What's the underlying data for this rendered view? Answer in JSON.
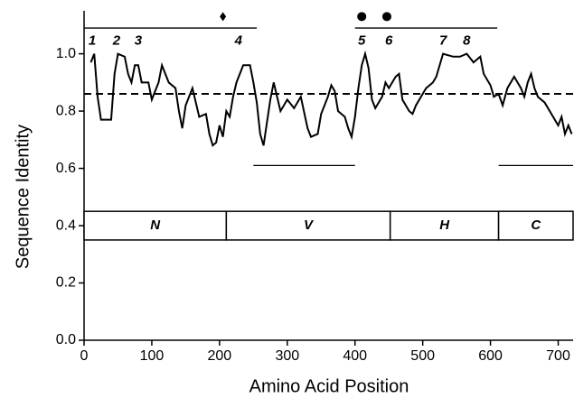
{
  "chart_data": {
    "type": "line",
    "x_label": "Amino Acid Position",
    "y_label": "Sequence Identity",
    "xlim": [
      0,
      722
    ],
    "ylim": [
      0,
      1.15
    ],
    "xticks": [
      0,
      100,
      200,
      300,
      400,
      500,
      600,
      700
    ],
    "yticks": [
      {
        "value": 0,
        "label": "0.0"
      },
      {
        "value": 0.2,
        "label": "0.2"
      },
      {
        "value": 0.4,
        "label": "0.4"
      },
      {
        "value": 0.6,
        "label": "0.6"
      },
      {
        "value": 0.8,
        "label": "0.8"
      },
      {
        "value": 1.0,
        "label": "1.0"
      }
    ],
    "color": "#000000",
    "x": [
      10,
      15,
      20,
      25,
      40,
      45,
      50,
      60,
      65,
      70,
      75,
      80,
      85,
      95,
      100,
      110,
      115,
      120,
      125,
      135,
      140,
      145,
      150,
      160,
      165,
      170,
      180,
      185,
      190,
      195,
      200,
      205,
      210,
      215,
      220,
      225,
      235,
      245,
      250,
      255,
      260,
      265,
      270,
      275,
      280,
      290,
      300,
      310,
      320,
      330,
      335,
      345,
      350,
      360,
      365,
      370,
      375,
      385,
      390,
      395,
      400,
      405,
      410,
      415,
      420,
      425,
      430,
      440,
      445,
      450,
      460,
      465,
      470,
      480,
      485,
      490,
      500,
      505,
      515,
      520,
      530,
      545,
      555,
      565,
      575,
      585,
      590,
      600,
      605,
      612,
      618,
      625,
      635,
      645,
      650,
      655,
      660,
      665,
      670,
      680,
      690,
      700,
      705,
      710,
      715,
      720
    ],
    "values": [
      0.97,
      1.0,
      0.85,
      0.77,
      0.77,
      0.93,
      1.0,
      0.99,
      0.93,
      0.9,
      0.96,
      0.96,
      0.9,
      0.9,
      0.84,
      0.9,
      0.96,
      0.93,
      0.9,
      0.88,
      0.8,
      0.74,
      0.82,
      0.88,
      0.83,
      0.78,
      0.79,
      0.72,
      0.68,
      0.69,
      0.75,
      0.71,
      0.8,
      0.78,
      0.85,
      0.9,
      0.96,
      0.96,
      0.9,
      0.83,
      0.72,
      0.68,
      0.76,
      0.84,
      0.9,
      0.8,
      0.84,
      0.81,
      0.85,
      0.74,
      0.71,
      0.72,
      0.79,
      0.85,
      0.89,
      0.87,
      0.8,
      0.78,
      0.74,
      0.71,
      0.78,
      0.88,
      0.96,
      1.0,
      0.95,
      0.84,
      0.81,
      0.85,
      0.9,
      0.88,
      0.92,
      0.93,
      0.84,
      0.8,
      0.79,
      0.82,
      0.86,
      0.88,
      0.9,
      0.92,
      1.0,
      0.99,
      0.99,
      1.0,
      0.97,
      0.99,
      0.93,
      0.89,
      0.85,
      0.86,
      0.82,
      0.88,
      0.92,
      0.88,
      0.85,
      0.9,
      0.93,
      0.88,
      0.85,
      0.83,
      0.79,
      0.75,
      0.78,
      0.72,
      0.75,
      0.72
    ],
    "reference_line": 0.86,
    "domain_band": [
      0.35,
      0.45
    ],
    "domains": [
      {
        "label": "N",
        "start": 0,
        "end": 210
      },
      {
        "label": "V",
        "start": 210,
        "end": 452
      },
      {
        "label": "H",
        "start": 452,
        "end": 612
      },
      {
        "label": "C",
        "start": 612,
        "end": 722
      }
    ],
    "segments": [
      {
        "x": [
          0,
          255
        ],
        "y": 1.09
      },
      {
        "x": [
          400,
          610
        ],
        "y": 1.09
      },
      {
        "x": [
          250,
          400
        ],
        "y": 0.61
      },
      {
        "x": [
          612,
          722
        ],
        "y": 0.61
      }
    ],
    "markers": [
      {
        "shape": "diamond",
        "x": 205,
        "y": 1.13
      },
      {
        "shape": "circle",
        "x": 410,
        "y": 1.13
      },
      {
        "shape": "circle",
        "x": 447,
        "y": 1.13
      }
    ],
    "annotations": [
      {
        "text": "1",
        "x": 12,
        "y": 1.045
      },
      {
        "text": "2",
        "x": 48,
        "y": 1.045
      },
      {
        "text": "3",
        "x": 80,
        "y": 1.045
      },
      {
        "text": "4",
        "x": 228,
        "y": 1.045
      },
      {
        "text": "5",
        "x": 410,
        "y": 1.045
      },
      {
        "text": "6",
        "x": 450,
        "y": 1.045
      },
      {
        "text": "7",
        "x": 530,
        "y": 1.045
      },
      {
        "text": "8",
        "x": 565,
        "y": 1.045
      }
    ]
  }
}
